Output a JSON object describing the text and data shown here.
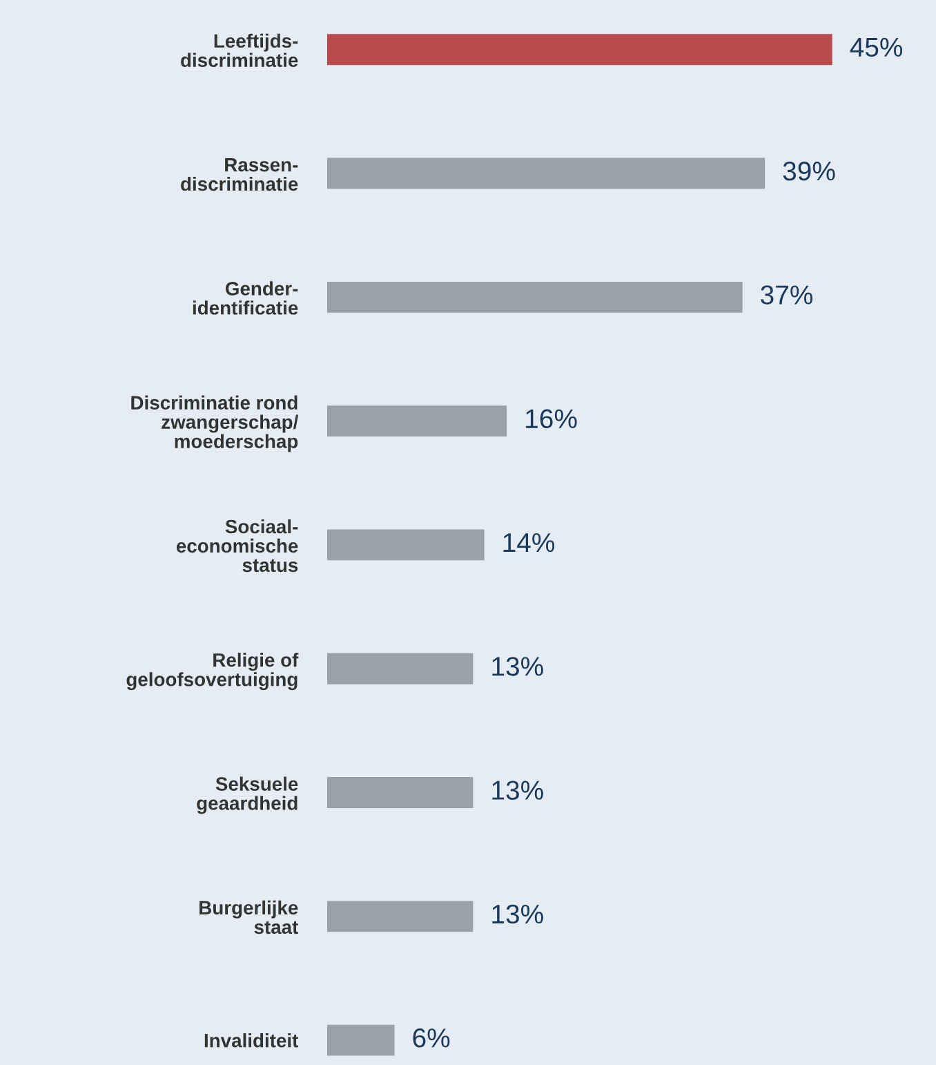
{
  "chart_data": {
    "type": "bar",
    "orientation": "horizontal",
    "categories": [
      "Leeftijds-\ndiscriminatie",
      "Rassen-\ndiscriminatie",
      "Gender-\nidentificatie",
      "Discriminatie rond\nzwangerschap/\nmoederschap",
      "Sociaal-\neconomische\nstatus",
      "Religie of\ngeloofsovertuiging",
      "Seksuele\ngeaardheid",
      "Burgerlijke\nstaat",
      "Invaliditeit"
    ],
    "values": [
      45,
      39,
      37,
      16,
      14,
      13,
      13,
      13,
      6
    ],
    "colors": [
      "#b94a4c",
      "#9aa1a8",
      "#9aa1a8",
      "#9aa1a8",
      "#9aa1a8",
      "#9aa1a8",
      "#9aa1a8",
      "#9aa1a8",
      "#9aa1a8"
    ],
    "value_labels": [
      "45%",
      "39%",
      "37%",
      "16%",
      "14%",
      "13%",
      "13%",
      "13%",
      "6%"
    ],
    "xlim": [
      0,
      54
    ],
    "tick_labels": "y",
    "grid": false,
    "legend": false
  }
}
